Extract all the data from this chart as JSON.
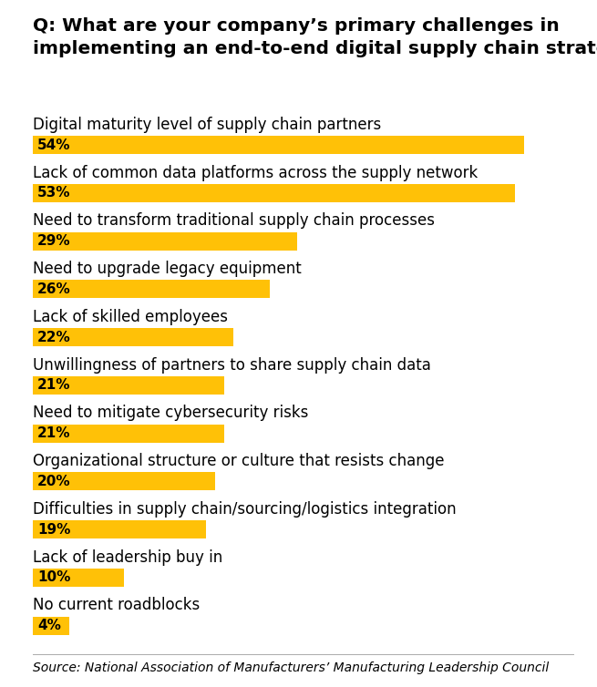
{
  "title_line1": "Q: What are your company’s primary challenges in",
  "title_line2": "implementing an end-to-end digital supply chain strategy?",
  "categories": [
    "Digital maturity level of supply chain partners",
    "Lack of common data platforms across the supply network",
    "Need to transform traditional supply chain processes",
    "Need to upgrade legacy equipment",
    "Lack of skilled employees",
    "Unwillingness of partners to share supply chain data",
    "Need to mitigate cybersecurity risks",
    "Organizational structure or culture that resists change",
    "Difficulties in supply chain/sourcing/logistics integration",
    "Lack of leadership buy in",
    "No current roadblocks"
  ],
  "values": [
    54,
    53,
    29,
    26,
    22,
    21,
    21,
    20,
    19,
    10,
    4
  ],
  "bar_color": "#FFC107",
  "text_color": "#000000",
  "background_color": "#FFFFFF",
  "source_text": "Source: National Association of Manufacturers’ Manufacturing Leadership Council",
  "max_val": 60,
  "title_fontsize": 14.5,
  "label_fontsize": 12,
  "value_fontsize": 11,
  "source_fontsize": 10
}
